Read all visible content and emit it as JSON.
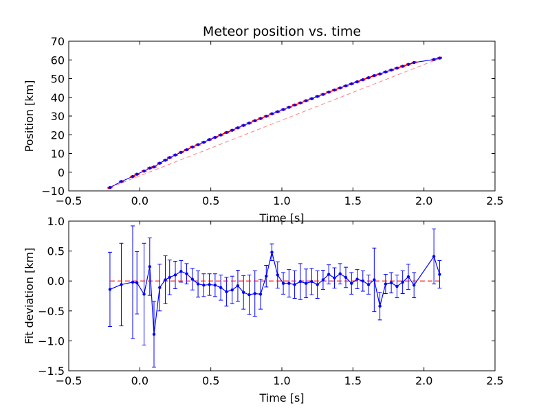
{
  "colors": {
    "data": "#0000ff",
    "fit": "#ff0000",
    "axes": "#000000",
    "background": "#ffffff"
  },
  "chart_data": [
    {
      "type": "line",
      "title": "Meteor position vs. time",
      "xlabel": "Time [s]",
      "ylabel": "Position [km]",
      "xlim": [
        -0.5,
        2.5
      ],
      "ylim": [
        -10,
        70
      ],
      "xticks": [
        -0.5,
        0.0,
        0.5,
        1.0,
        1.5,
        2.0,
        2.5
      ],
      "xtick_labels": [
        "−0.5",
        "0.0",
        "0.5",
        "1.0",
        "1.5",
        "2.0",
        "2.5"
      ],
      "yticks": [
        -10,
        0,
        10,
        20,
        30,
        40,
        50,
        60,
        70
      ],
      "ytick_labels": [
        "−10",
        "0",
        "10",
        "20",
        "30",
        "40",
        "50",
        "60",
        "70"
      ],
      "grid": false,
      "series": [
        {
          "style": "blue line with dot markers",
          "x": [
            -0.21,
            -0.13,
            -0.05,
            -0.02,
            0.03,
            0.07,
            0.1,
            0.14,
            0.18,
            0.21,
            0.25,
            0.29,
            0.33,
            0.37,
            0.41,
            0.45,
            0.49,
            0.53,
            0.57,
            0.61,
            0.65,
            0.69,
            0.73,
            0.77,
            0.81,
            0.85,
            0.89,
            0.93,
            0.97,
            1.01,
            1.05,
            1.09,
            1.13,
            1.17,
            1.21,
            1.25,
            1.29,
            1.33,
            1.37,
            1.41,
            1.45,
            1.49,
            1.53,
            1.57,
            1.61,
            1.65,
            1.69,
            1.73,
            1.77,
            1.81,
            1.85,
            1.89,
            1.93,
            2.07,
            2.11
          ],
          "y": [
            -8.2,
            -5.0,
            -2.3,
            -1.1,
            0.6,
            2.2,
            2.8,
            4.8,
            6.4,
            7.8,
            9.2,
            10.6,
            12.0,
            13.4,
            14.7,
            16.0,
            17.4,
            18.6,
            19.9,
            21.2,
            22.4,
            23.7,
            25.0,
            26.2,
            27.5,
            28.7,
            29.9,
            31.2,
            32.3,
            33.5,
            34.7,
            35.9,
            37.0,
            38.2,
            39.3,
            40.5,
            41.6,
            42.8,
            43.9,
            45.0,
            46.1,
            47.2,
            48.3,
            49.4,
            50.5,
            51.6,
            52.5,
            53.6,
            54.6,
            55.6,
            56.6,
            57.6,
            58.6,
            60.2,
            61.0
          ]
        },
        {
          "style": "red dashed fit line",
          "x": [
            -0.21,
            2.11
          ],
          "y": [
            -8.2,
            60.8
          ]
        }
      ]
    },
    {
      "type": "line",
      "title": "",
      "xlabel": "Time [s]",
      "ylabel": "Fit deviation [km]",
      "xlim": [
        -0.5,
        2.5
      ],
      "ylim": [
        -1.5,
        1.0
      ],
      "xticks": [
        -0.5,
        0.0,
        0.5,
        1.0,
        1.5,
        2.0,
        2.5
      ],
      "xtick_labels": [
        "−0.5",
        "0.0",
        "0.5",
        "1.0",
        "1.5",
        "2.0",
        "2.5"
      ],
      "yticks": [
        -1.5,
        -1.0,
        -0.5,
        0.0,
        0.5,
        1.0
      ],
      "ytick_labels": [
        "−1.5",
        "−1.0",
        "−0.5",
        "0.0",
        "0.5",
        "1.0"
      ],
      "grid": false,
      "series": [
        {
          "style": "blue line with dot markers and error bars",
          "x": [
            -0.21,
            -0.13,
            -0.05,
            -0.02,
            0.03,
            0.07,
            0.1,
            0.14,
            0.18,
            0.21,
            0.25,
            0.29,
            0.33,
            0.37,
            0.41,
            0.45,
            0.49,
            0.53,
            0.57,
            0.61,
            0.65,
            0.69,
            0.73,
            0.77,
            0.81,
            0.85,
            0.89,
            0.93,
            0.97,
            1.01,
            1.05,
            1.09,
            1.13,
            1.17,
            1.21,
            1.25,
            1.29,
            1.33,
            1.37,
            1.41,
            1.45,
            1.49,
            1.53,
            1.57,
            1.61,
            1.65,
            1.69,
            1.73,
            1.77,
            1.81,
            1.85,
            1.89,
            1.93,
            2.07,
            2.11
          ],
          "y": [
            -0.14,
            -0.06,
            -0.02,
            -0.03,
            -0.22,
            0.24,
            -0.89,
            -0.11,
            0.02,
            0.06,
            0.1,
            0.16,
            0.12,
            0.03,
            -0.05,
            -0.07,
            -0.06,
            -0.07,
            -0.11,
            -0.18,
            -0.15,
            -0.08,
            -0.19,
            -0.23,
            -0.21,
            -0.22,
            0.08,
            0.48,
            0.1,
            -0.04,
            -0.04,
            -0.06,
            -0.01,
            -0.04,
            -0.01,
            -0.06,
            0.02,
            0.11,
            0.05,
            0.12,
            0.06,
            -0.04,
            0.03,
            0.0,
            -0.06,
            0.02,
            -0.42,
            -0.05,
            -0.03,
            -0.09,
            -0.02,
            0.07,
            -0.07,
            0.41,
            0.11
          ],
          "error": [
            0.62,
            0.69,
            0.94,
            0.52,
            0.85,
            0.48,
            0.55,
            0.39,
            0.4,
            0.29,
            0.23,
            0.18,
            0.17,
            0.18,
            0.22,
            0.19,
            0.18,
            0.19,
            0.21,
            0.24,
            0.23,
            0.26,
            0.28,
            0.33,
            0.38,
            0.25,
            0.18,
            0.14,
            0.22,
            0.18,
            0.23,
            0.23,
            0.3,
            0.24,
            0.22,
            0.23,
            0.16,
            0.16,
            0.17,
            0.17,
            0.17,
            0.18,
            0.16,
            0.17,
            0.16,
            0.53,
            0.23,
            0.16,
            0.17,
            0.19,
            0.19,
            0.21,
            0.21,
            0.46,
            0.23
          ]
        },
        {
          "style": "red dashed zero line",
          "x": [
            -0.21,
            2.11
          ],
          "y": [
            0.0,
            0.0
          ]
        }
      ]
    }
  ]
}
